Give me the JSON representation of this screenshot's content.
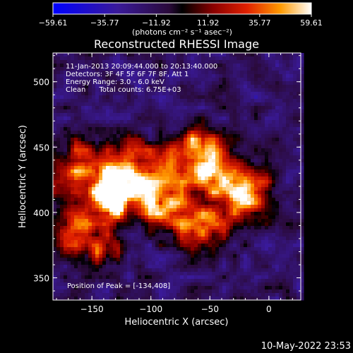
{
  "chart_data": {
    "type": "heatmap",
    "title": "Reconstructed RHESSI Image",
    "xlabel": "Heliocentric X (arcsec)",
    "ylabel": "Heliocentric Y (arcsec)",
    "xlim": [
      -183,
      27
    ],
    "ylim": [
      333,
      522
    ],
    "x_ticks": [
      -150,
      -100,
      -50,
      0
    ],
    "y_ticks": [
      350,
      400,
      450,
      500
    ],
    "colorbar": {
      "ticks": [
        "-59.61",
        "-35.77",
        "-11.92",
        "11.92",
        "35.77",
        "59.61"
      ],
      "range": [
        -59.61,
        59.61
      ],
      "unit_label": "(photons cm⁻² s⁻¹ asec⁻²)"
    },
    "info_lines": [
      "11-Jan-2013 20:09:44.000 to 20:13:40.000",
      "Detectors: 3F 4F 5F 6F 7F 8F, Att 1",
      "Energy Range: 3.0 - 6.0 keV",
      "Clean      Total counts: 6.75E+03"
    ],
    "peak_label": "Position of Peak = [-134,408]",
    "peak_position": [
      -134,
      408
    ],
    "sources": [
      {
        "x": -134,
        "y": 408,
        "sx": 11,
        "sy": 10,
        "amp": 59.6
      },
      {
        "x": -155,
        "y": 432,
        "sx": 18,
        "sy": 16,
        "amp": 30
      },
      {
        "x": -110,
        "y": 430,
        "sx": 20,
        "sy": 16,
        "amp": 32
      },
      {
        "x": -62,
        "y": 448,
        "sx": 14,
        "sy": 12,
        "amp": 36
      },
      {
        "x": -45,
        "y": 425,
        "sx": 18,
        "sy": 14,
        "amp": 28
      },
      {
        "x": -15,
        "y": 412,
        "sx": 14,
        "sy": 14,
        "amp": 26
      },
      {
        "x": -90,
        "y": 405,
        "sx": 16,
        "sy": 12,
        "amp": 22
      },
      {
        "x": -60,
        "y": 390,
        "sx": 18,
        "sy": 12,
        "amp": 20
      },
      {
        "x": -165,
        "y": 390,
        "sx": 12,
        "sy": 14,
        "amp": 22
      },
      {
        "x": -140,
        "y": 372,
        "sx": 14,
        "sy": 10,
        "amp": 14
      }
    ]
  },
  "timestamp": "10-May-2022 23:53"
}
